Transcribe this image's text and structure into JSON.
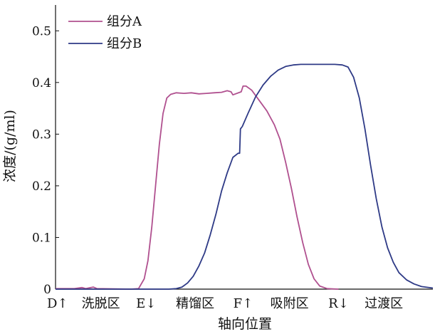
{
  "chart_data": {
    "type": "line",
    "ylabel": "浓度/(g/ml)",
    "xlabel": "轴向位置",
    "ylim": [
      0,
      0.55
    ],
    "y_ticks": [
      {
        "value": 0,
        "label": "0"
      },
      {
        "value": 0.1,
        "label": "0.1"
      },
      {
        "value": 0.2,
        "label": "0.2"
      },
      {
        "value": 0.3,
        "label": "0.3"
      },
      {
        "value": 0.4,
        "label": "0.4"
      },
      {
        "value": 0.5,
        "label": "0.5"
      }
    ],
    "x_range": [
      0,
      100
    ],
    "x_tick_labels": [
      {
        "label": "D↑",
        "x": 0.5
      },
      {
        "label": "洗脱区",
        "x": 12
      },
      {
        "label": "E↓",
        "x": 24
      },
      {
        "label": "精馏区",
        "x": 37
      },
      {
        "label": "F↑",
        "x": 49.7
      },
      {
        "label": "吸附区",
        "x": 62
      },
      {
        "label": "R↓",
        "x": 75
      },
      {
        "label": "过渡区",
        "x": 87
      }
    ],
    "legend_position": "top-left",
    "grid": false,
    "series": [
      {
        "name": "组分A",
        "color": "#b0508f",
        "points": [
          [
            0,
            0.001
          ],
          [
            5,
            0.001
          ],
          [
            7,
            0.003
          ],
          [
            8,
            0.001
          ],
          [
            10,
            0.004
          ],
          [
            11,
            0.001
          ],
          [
            20,
            0.0
          ],
          [
            22,
            0.001
          ],
          [
            23.5,
            0.02
          ],
          [
            24.5,
            0.055
          ],
          [
            25.5,
            0.12
          ],
          [
            26.5,
            0.2
          ],
          [
            27.5,
            0.28
          ],
          [
            28.5,
            0.34
          ],
          [
            29.5,
            0.37
          ],
          [
            30.5,
            0.377
          ],
          [
            32,
            0.38
          ],
          [
            34,
            0.379
          ],
          [
            36,
            0.38
          ],
          [
            38,
            0.378
          ],
          [
            40,
            0.379
          ],
          [
            42,
            0.38
          ],
          [
            44,
            0.381
          ],
          [
            45.5,
            0.384
          ],
          [
            46.5,
            0.382
          ],
          [
            47,
            0.376
          ],
          [
            49.2,
            0.382
          ],
          [
            49.7,
            0.393
          ],
          [
            50.5,
            0.393
          ],
          [
            52,
            0.385
          ],
          [
            54,
            0.365
          ],
          [
            56,
            0.345
          ],
          [
            58,
            0.318
          ],
          [
            59.5,
            0.29
          ],
          [
            61,
            0.245
          ],
          [
            62.5,
            0.195
          ],
          [
            64,
            0.14
          ],
          [
            65.5,
            0.09
          ],
          [
            67,
            0.048
          ],
          [
            68.5,
            0.02
          ],
          [
            70,
            0.006
          ],
          [
            72,
            0.001
          ],
          [
            75,
            0.0
          ]
        ]
      },
      {
        "name": "组分B",
        "color": "#2e3a86",
        "points": [
          [
            0,
            0.0
          ],
          [
            30,
            0.0
          ],
          [
            32,
            0.001
          ],
          [
            33.5,
            0.004
          ],
          [
            35,
            0.012
          ],
          [
            36.5,
            0.025
          ],
          [
            38,
            0.045
          ],
          [
            39.5,
            0.07
          ],
          [
            41,
            0.105
          ],
          [
            42.5,
            0.145
          ],
          [
            44,
            0.19
          ],
          [
            45.5,
            0.225
          ],
          [
            47,
            0.255
          ],
          [
            48.4,
            0.263
          ],
          [
            48.8,
            0.263
          ],
          [
            49,
            0.31
          ],
          [
            49.5,
            0.315
          ],
          [
            51,
            0.34
          ],
          [
            53,
            0.372
          ],
          [
            55,
            0.395
          ],
          [
            57,
            0.412
          ],
          [
            59,
            0.424
          ],
          [
            61,
            0.431
          ],
          [
            63,
            0.434
          ],
          [
            65,
            0.435
          ],
          [
            68,
            0.435
          ],
          [
            71,
            0.435
          ],
          [
            74,
            0.435
          ],
          [
            76,
            0.434
          ],
          [
            77.5,
            0.43
          ],
          [
            79,
            0.41
          ],
          [
            80.5,
            0.37
          ],
          [
            82,
            0.31
          ],
          [
            83.5,
            0.24
          ],
          [
            85,
            0.175
          ],
          [
            86.5,
            0.12
          ],
          [
            88,
            0.08
          ],
          [
            89.5,
            0.052
          ],
          [
            91,
            0.032
          ],
          [
            93,
            0.018
          ],
          [
            95,
            0.01
          ],
          [
            97,
            0.005
          ],
          [
            100,
            0.002
          ]
        ]
      }
    ]
  }
}
